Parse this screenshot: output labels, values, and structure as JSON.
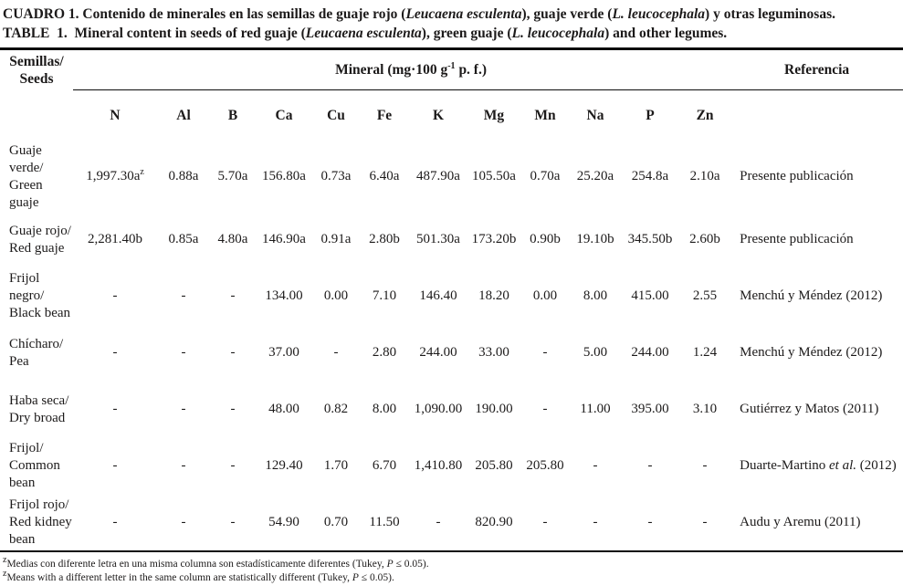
{
  "title": {
    "line1": [
      {
        "t": "CUADRO 1. Contenido de minerales en las semillas de guaje rojo ("
      },
      {
        "t": "Leucaena esculenta",
        "i": true
      },
      {
        "t": "), guaje verde ("
      },
      {
        "t": "L. leucocephala",
        "i": true
      },
      {
        "t": ") y otras leguminosas."
      }
    ],
    "line2": [
      {
        "t": "TABLE  1.  Mineral content in seeds of red guaje ("
      },
      {
        "t": "Leucaena esculenta",
        "i": true
      },
      {
        "t": "), green guaje ("
      },
      {
        "t": "L. leucocephala",
        "i": true
      },
      {
        "t": ") and other legumes."
      }
    ]
  },
  "header": {
    "seeds": "Semillas/\nSeeds",
    "mineral_unit": [
      {
        "t": "Mineral (mg·100 g"
      },
      {
        "t": "-1",
        "sup": true
      },
      {
        "t": " p. f.)"
      }
    ],
    "referencia": "Referencia",
    "minerals": [
      "N",
      "Al",
      "B",
      "Ca",
      "Cu",
      "Fe",
      "K",
      "Mg",
      "Mn",
      "Na",
      "P",
      "Zn"
    ]
  },
  "rows": [
    {
      "name": [
        "Guaje verde/",
        "Green guaje"
      ],
      "values": [
        {
          "t": "1,997.30a",
          "sup": "z"
        },
        "0.88a",
        "5.70a",
        "156.80a",
        "0.73a",
        "6.40a",
        "487.90a",
        "105.50a",
        "0.70a",
        "25.20a",
        "254.8a",
        "2.10a"
      ],
      "reference": [
        {
          "t": "Presente publicación"
        }
      ]
    },
    {
      "name": [
        "Guaje rojo/",
        "Red guaje"
      ],
      "values": [
        "2,281.40b",
        "0.85a",
        "4.80a",
        "146.90a",
        "0.91a",
        "2.80b",
        "501.30a",
        "173.20b",
        "0.90b",
        "19.10b",
        "345.50b",
        "2.60b"
      ],
      "reference": [
        {
          "t": "Presente publicación"
        }
      ]
    },
    {
      "name": [
        "Frijol negro/",
        "Black bean"
      ],
      "values": [
        "-",
        "-",
        "-",
        "134.00",
        "0.00",
        "7.10",
        "146.40",
        "18.20",
        "0.00",
        "8.00",
        "415.00",
        "2.55"
      ],
      "reference": [
        {
          "t": "Menchú y Méndez (2012)"
        }
      ]
    },
    {
      "name": [
        "Chícharo/",
        "Pea"
      ],
      "values": [
        "-",
        "-",
        "-",
        "37.00",
        "-",
        "2.80",
        "244.00",
        "33.00",
        "-",
        "5.00",
        "244.00",
        "1.24"
      ],
      "reference": [
        {
          "t": "Menchú y Méndez (2012)"
        }
      ]
    },
    {
      "name": [
        "Haba seca/",
        "Dry broad"
      ],
      "values": [
        "-",
        "-",
        "-",
        "48.00",
        "0.82",
        "8.00",
        "1,090.00",
        "190.00",
        "-",
        "11.00",
        "395.00",
        "3.10"
      ],
      "reference": [
        {
          "t": "Gutiérrez y Matos (2011)"
        }
      ]
    },
    {
      "name": [
        "Frijol/",
        "Common",
        "bean"
      ],
      "values": [
        "-",
        "-",
        "-",
        "129.40",
        "1.70",
        "6.70",
        "1,410.80",
        "205.80",
        "205.80",
        "-",
        "-",
        "-"
      ],
      "reference": [
        {
          "t": "Duarte-Martino "
        },
        {
          "t": "et al.",
          "i": true
        },
        {
          "t": " (2012)"
        }
      ]
    },
    {
      "name": [
        "Frijol rojo/",
        "Red kidney",
        "bean"
      ],
      "values": [
        "-",
        "-",
        "-",
        "54.90",
        "0.70",
        "11.50",
        "-",
        "820.90",
        "-",
        "-",
        "-",
        "-"
      ],
      "reference": [
        {
          "t": "Audu y Aremu (2011)"
        }
      ]
    }
  ],
  "footnotes": [
    [
      {
        "t": "z",
        "supseg": true
      },
      {
        "t": "Medias con diferente letra en una misma columna son estadísticamente diferentes (Tukey, "
      },
      {
        "t": "P",
        "i": true
      },
      {
        "t": " ≤ 0.05)."
      }
    ],
    [
      {
        "t": "z",
        "supseg": true
      },
      {
        "t": "Means with a different letter in the same column are statistically different (Tukey, "
      },
      {
        "t": "P",
        "i": true
      },
      {
        "t": " ≤ 0.05)."
      }
    ]
  ]
}
